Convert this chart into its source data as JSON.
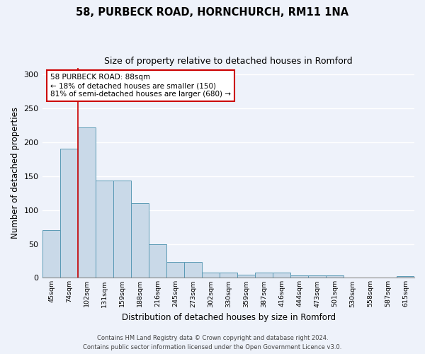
{
  "title1": "58, PURBECK ROAD, HORNCHURCH, RM11 1NA",
  "title2": "Size of property relative to detached houses in Romford",
  "xlabel": "Distribution of detached houses by size in Romford",
  "ylabel": "Number of detached properties",
  "categories": [
    "45sqm",
    "74sqm",
    "102sqm",
    "131sqm",
    "159sqm",
    "188sqm",
    "216sqm",
    "245sqm",
    "273sqm",
    "302sqm",
    "330sqm",
    "359sqm",
    "387sqm",
    "416sqm",
    "444sqm",
    "473sqm",
    "501sqm",
    "530sqm",
    "558sqm",
    "587sqm",
    "615sqm"
  ],
  "values": [
    70,
    190,
    222,
    144,
    144,
    110,
    50,
    23,
    23,
    8,
    8,
    5,
    8,
    8,
    4,
    4,
    4,
    0,
    0,
    0,
    3
  ],
  "bar_color": "#c9d9e8",
  "bar_edge_color": "#5a9ab5",
  "vline_x": 1.5,
  "vline_color": "#cc0000",
  "annotation_text": "58 PURBECK ROAD: 88sqm\n← 18% of detached houses are smaller (150)\n81% of semi-detached houses are larger (680) →",
  "annotation_box_color": "white",
  "annotation_box_edge_color": "#cc0000",
  "footer1": "Contains HM Land Registry data © Crown copyright and database right 2024.",
  "footer2": "Contains public sector information licensed under the Open Government Licence v3.0.",
  "ylim": [
    0,
    310
  ],
  "yticks": [
    0,
    50,
    100,
    150,
    200,
    250,
    300
  ],
  "background_color": "#eef2fa"
}
